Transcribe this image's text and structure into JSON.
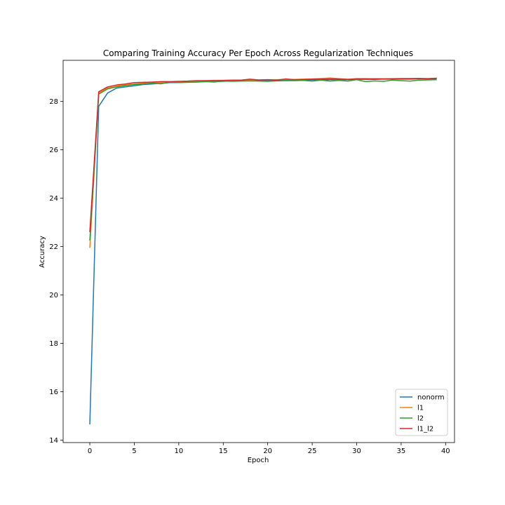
{
  "chart_data": {
    "type": "line",
    "title": "Comparing Training Accuracy Per Epoch Across Regularization Techniques",
    "xlabel": "Epoch",
    "ylabel": "Accuracy",
    "xlim": [
      -3,
      41
    ],
    "ylim": [
      13.9,
      29.7
    ],
    "xticks": [
      0,
      5,
      10,
      15,
      20,
      25,
      30,
      35,
      40
    ],
    "yticks": [
      14,
      16,
      18,
      20,
      22,
      24,
      26,
      28
    ],
    "grid": false,
    "legend_position": "lower-right",
    "x": [
      0,
      1,
      2,
      3,
      4,
      5,
      6,
      7,
      8,
      9,
      10,
      11,
      12,
      13,
      14,
      15,
      16,
      17,
      18,
      19,
      20,
      21,
      22,
      23,
      24,
      25,
      26,
      27,
      28,
      29,
      30,
      31,
      32,
      33,
      34,
      35,
      36,
      37,
      38,
      39
    ],
    "series": [
      {
        "name": "nonorm",
        "color": "#1f77b4",
        "values": [
          14.65,
          27.8,
          28.35,
          28.55,
          28.6,
          28.65,
          28.7,
          28.72,
          28.75,
          28.78,
          28.78,
          28.8,
          28.8,
          28.82,
          28.83,
          28.83,
          28.85,
          28.85,
          28.86,
          28.86,
          28.87,
          28.87,
          28.88,
          28.88,
          28.88,
          28.89,
          28.89,
          28.9,
          28.9,
          28.9,
          28.91,
          28.91,
          28.91,
          28.92,
          28.92,
          28.92,
          28.92,
          28.93,
          28.93,
          28.93
        ]
      },
      {
        "name": "l1",
        "color": "#ff7f0e",
        "values": [
          21.95,
          28.35,
          28.55,
          28.63,
          28.68,
          28.72,
          28.75,
          28.77,
          28.78,
          28.8,
          28.82,
          28.83,
          28.84,
          28.85,
          28.86,
          28.87,
          28.87,
          28.88,
          28.88,
          28.89,
          28.9,
          28.9,
          28.91,
          28.91,
          28.92,
          28.93,
          28.95,
          28.97,
          28.94,
          28.92,
          28.93,
          28.93,
          28.94,
          28.94,
          28.94,
          28.95,
          28.95,
          28.95,
          28.95,
          28.96
        ]
      },
      {
        "name": "l2",
        "color": "#2ca02c",
        "values": [
          22.25,
          28.3,
          28.52,
          28.6,
          28.65,
          28.7,
          28.72,
          28.75,
          28.73,
          28.8,
          28.78,
          28.79,
          28.8,
          28.82,
          28.8,
          28.84,
          28.83,
          28.84,
          28.85,
          28.84,
          28.83,
          28.85,
          28.86,
          28.86,
          28.87,
          28.84,
          28.88,
          28.84,
          28.87,
          28.84,
          28.9,
          28.82,
          28.85,
          28.83,
          28.88,
          28.86,
          28.84,
          28.88,
          28.89,
          28.9
        ]
      },
      {
        "name": "l1_l2",
        "color": "#d62728",
        "values": [
          22.6,
          28.4,
          28.6,
          28.68,
          28.72,
          28.78,
          28.79,
          28.8,
          28.82,
          28.82,
          28.83,
          28.84,
          28.86,
          28.86,
          28.87,
          28.87,
          28.88,
          28.88,
          28.92,
          28.89,
          28.9,
          28.88,
          28.93,
          28.9,
          28.91,
          28.92,
          28.92,
          28.93,
          28.93,
          28.91,
          28.94,
          28.94,
          28.93,
          28.93,
          28.94,
          28.94,
          28.94,
          28.95,
          28.93,
          28.96
        ]
      }
    ]
  }
}
